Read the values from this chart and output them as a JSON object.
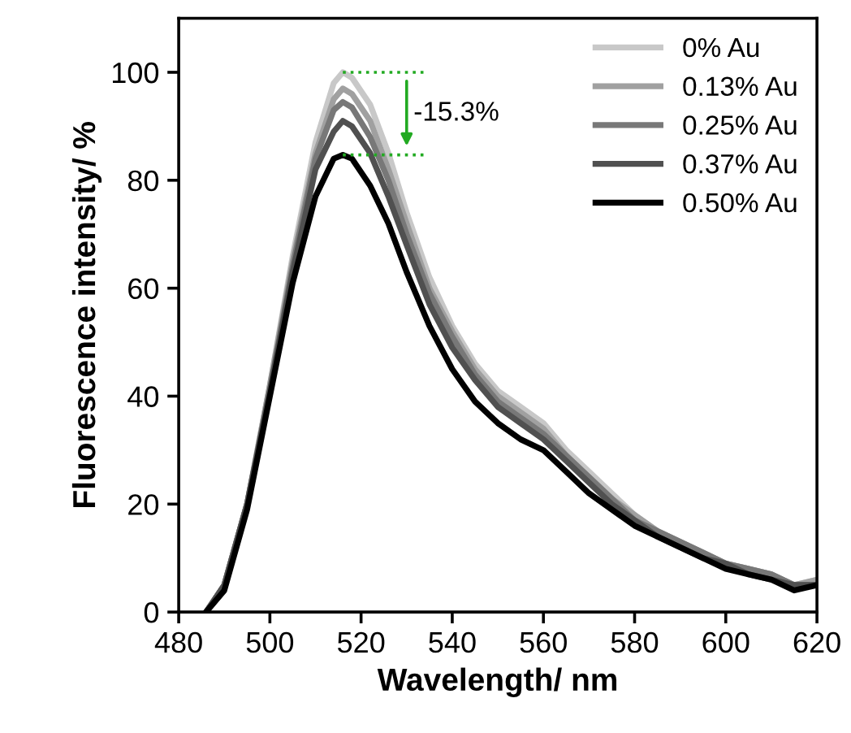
{
  "chart_data": {
    "type": "line",
    "xlabel": "Wavelength/ nm",
    "ylabel": "Fluorescence intensity/ %",
    "x": [
      486,
      490,
      495,
      500,
      505,
      510,
      514,
      516,
      518,
      522,
      526,
      530,
      535,
      540,
      545,
      550,
      555,
      560,
      565,
      570,
      575,
      580,
      585,
      590,
      595,
      600,
      605,
      610,
      615,
      620
    ],
    "series": [
      {
        "name": "0% Au",
        "color": "#c8c8c8",
        "values": [
          0,
          5,
          20,
          42,
          66,
          87,
          98,
          100,
          99,
          94,
          85,
          74,
          62,
          53,
          46,
          41,
          38,
          35,
          30,
          26,
          22,
          18,
          15,
          13,
          11,
          9,
          8,
          7,
          5,
          6
        ]
      },
      {
        "name": "0.13% Au",
        "color": "#a0a0a0",
        "values": [
          0,
          5,
          20,
          42,
          65,
          85,
          95,
          97,
          96,
          91,
          82,
          72,
          60,
          52,
          45,
          40,
          37,
          34,
          29,
          25,
          21,
          18,
          15,
          13,
          11,
          9,
          8,
          7,
          5,
          6
        ]
      },
      {
        "name": "0.25% Au",
        "color": "#787878",
        "values": [
          0,
          5,
          20,
          41,
          64,
          84,
          93,
          94.5,
          93.5,
          88,
          80,
          70,
          59,
          51,
          44,
          39,
          36,
          33,
          29,
          25,
          21,
          17,
          15,
          13,
          11,
          9,
          8,
          7,
          5,
          5
        ]
      },
      {
        "name": "0.37% Au",
        "color": "#505050",
        "values": [
          0,
          5,
          20,
          41,
          63,
          82,
          89,
          91,
          90,
          85,
          77,
          68,
          57,
          49,
          43,
          38,
          35,
          32,
          28,
          24,
          20,
          17,
          14,
          12,
          10,
          9,
          7,
          6,
          5,
          5
        ]
      },
      {
        "name": "0.50% Au",
        "color": "#000000",
        "values": [
          0,
          4,
          19,
          40,
          61,
          77,
          84,
          84.7,
          84,
          79,
          72,
          63,
          53,
          45,
          39,
          35,
          32,
          30,
          26,
          22,
          19,
          16,
          14,
          12,
          10,
          8,
          7,
          6,
          4,
          5
        ]
      }
    ],
    "annotations": [
      {
        "text": "-15.3%",
        "x": 516,
        "y": 84.7
      }
    ],
    "xlim": [
      480,
      620
    ],
    "ylim": [
      0,
      110
    ],
    "xticks": [
      480,
      500,
      520,
      540,
      560,
      580,
      600,
      620
    ],
    "yticks": [
      0,
      20,
      40,
      60,
      80,
      100
    ],
    "grid": false,
    "legend": "top right",
    "marker": "none",
    "line_style": "solid"
  }
}
